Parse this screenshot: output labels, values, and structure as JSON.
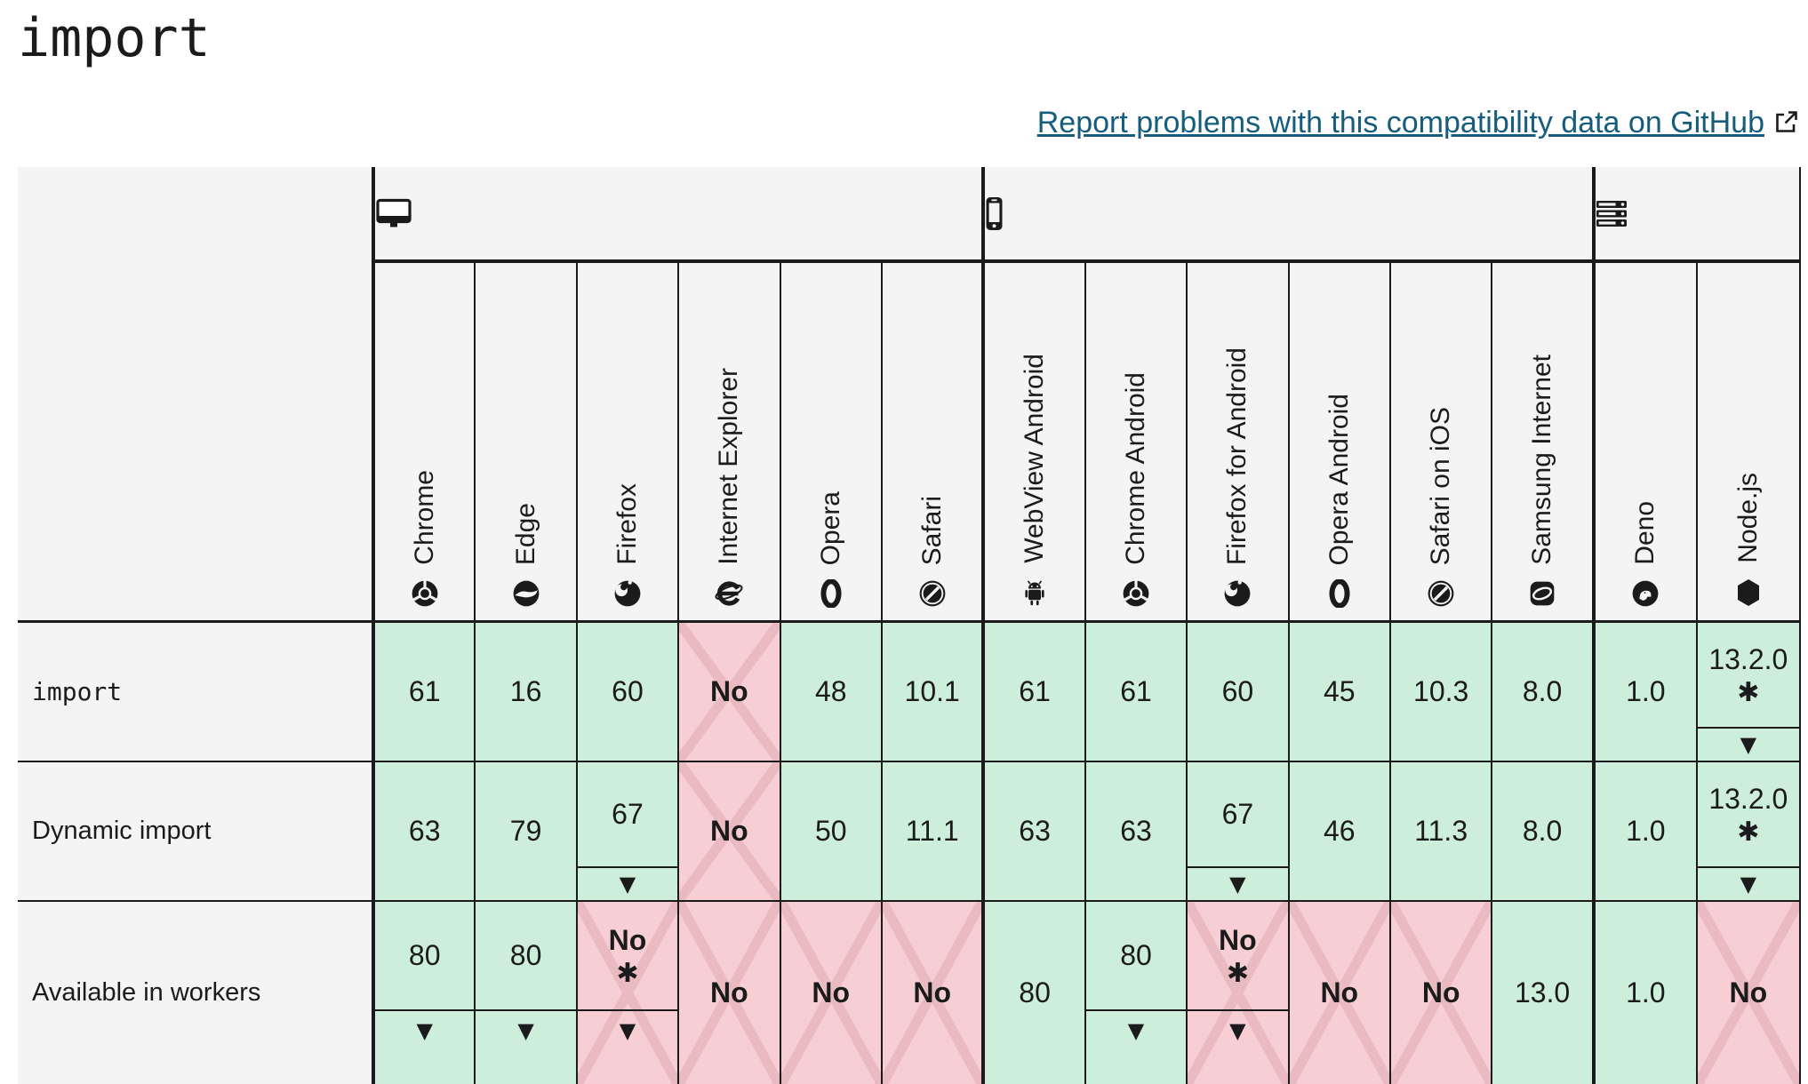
{
  "page": {
    "title": "import",
    "report_link": {
      "label": "Report problems with this compatibility data on GitHub",
      "icon": "external-link-icon"
    }
  },
  "colors": {
    "support_yes_bg": "#cdeeda",
    "support_no_bg": "#f6ced3",
    "no_cross_stripe": "#e9bac0",
    "header_bg": "#f4f4f4",
    "border": "#1b1b1b",
    "link": "#165c7d"
  },
  "symbols": {
    "footnote_star": "✱",
    "note_triangle": "▼"
  },
  "table": {
    "section_headers": [
      {
        "name": "desktop",
        "icon": "desktop-icon",
        "span": 6
      },
      {
        "name": "mobile",
        "icon": "mobile-icon",
        "span": 6
      },
      {
        "name": "server",
        "icon": "server-icon",
        "span": 2
      }
    ],
    "browsers": [
      {
        "label": "Chrome",
        "icon": "chrome-icon"
      },
      {
        "label": "Edge",
        "icon": "edge-icon"
      },
      {
        "label": "Firefox",
        "icon": "firefox-icon"
      },
      {
        "label": "Internet Explorer",
        "icon": "internet-explorer-icon"
      },
      {
        "label": "Opera",
        "icon": "opera-icon"
      },
      {
        "label": "Safari",
        "icon": "safari-icon"
      },
      {
        "label": "WebView Android",
        "icon": "android-icon"
      },
      {
        "label": "Chrome Android",
        "icon": "chrome-icon"
      },
      {
        "label": "Firefox for Android",
        "icon": "firefox-icon"
      },
      {
        "label": "Opera Android",
        "icon": "opera-icon"
      },
      {
        "label": "Safari on iOS",
        "icon": "safari-icon"
      },
      {
        "label": "Samsung Internet",
        "icon": "samsung-internet-icon"
      },
      {
        "label": "Deno",
        "icon": "deno-icon"
      },
      {
        "label": "Node.js",
        "icon": "nodejs-icon"
      }
    ],
    "rows": [
      {
        "label": "import",
        "label_code": true,
        "cells": [
          {
            "value": "61",
            "support": "yes"
          },
          {
            "value": "16",
            "support": "yes"
          },
          {
            "value": "60",
            "support": "yes"
          },
          {
            "value": "No",
            "support": "no"
          },
          {
            "value": "48",
            "support": "yes"
          },
          {
            "value": "10.1",
            "support": "yes"
          },
          {
            "value": "61",
            "support": "yes"
          },
          {
            "value": "61",
            "support": "yes"
          },
          {
            "value": "60",
            "support": "yes"
          },
          {
            "value": "45",
            "support": "yes"
          },
          {
            "value": "10.3",
            "support": "yes"
          },
          {
            "value": "8.0",
            "support": "yes"
          },
          {
            "value": "1.0",
            "support": "yes"
          },
          {
            "value": "13.2.0",
            "support": "yes",
            "star": true,
            "note": true
          }
        ]
      },
      {
        "label": "Dynamic import",
        "label_code": false,
        "cells": [
          {
            "value": "63",
            "support": "yes"
          },
          {
            "value": "79",
            "support": "yes"
          },
          {
            "value": "67",
            "support": "yes",
            "note": true
          },
          {
            "value": "No",
            "support": "no"
          },
          {
            "value": "50",
            "support": "yes"
          },
          {
            "value": "11.1",
            "support": "yes"
          },
          {
            "value": "63",
            "support": "yes"
          },
          {
            "value": "63",
            "support": "yes"
          },
          {
            "value": "67",
            "support": "yes",
            "note": true
          },
          {
            "value": "46",
            "support": "yes"
          },
          {
            "value": "11.3",
            "support": "yes"
          },
          {
            "value": "8.0",
            "support": "yes"
          },
          {
            "value": "1.0",
            "support": "yes"
          },
          {
            "value": "13.2.0",
            "support": "yes",
            "star": true,
            "note": true
          }
        ]
      },
      {
        "label": "Available in workers",
        "label_code": false,
        "cells": [
          {
            "value": "80",
            "support": "yes",
            "note": true
          },
          {
            "value": "80",
            "support": "yes",
            "note": true
          },
          {
            "value": "No",
            "support": "no",
            "star": true,
            "note": true
          },
          {
            "value": "No",
            "support": "no"
          },
          {
            "value": "No",
            "support": "no"
          },
          {
            "value": "No",
            "support": "no"
          },
          {
            "value": "80",
            "support": "yes"
          },
          {
            "value": "80",
            "support": "yes",
            "note": true
          },
          {
            "value": "No",
            "support": "no",
            "star": true,
            "note": true
          },
          {
            "value": "No",
            "support": "no"
          },
          {
            "value": "No",
            "support": "no"
          },
          {
            "value": "13.0",
            "support": "yes"
          },
          {
            "value": "1.0",
            "support": "yes"
          },
          {
            "value": "No",
            "support": "no"
          }
        ]
      }
    ]
  }
}
